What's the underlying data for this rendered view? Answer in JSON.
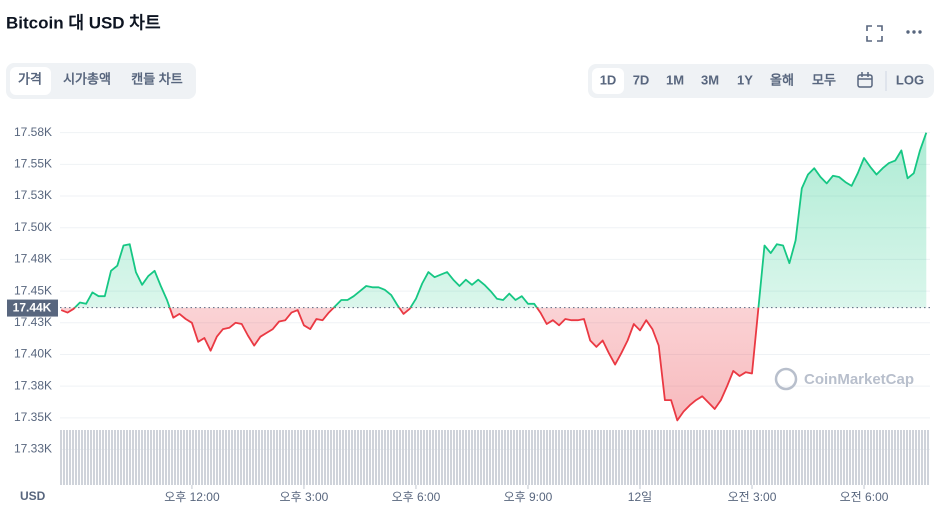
{
  "header": {
    "title": "Bitcoin 대 USD 차트",
    "tabs": [
      "가격",
      "시가총액",
      "캔들 차트"
    ],
    "ranges": [
      "1D",
      "7D",
      "1M",
      "3M",
      "1Y",
      "올해",
      "모두"
    ],
    "log": "LOG"
  },
  "watermark": "CoinMarketCap",
  "chart_data": {
    "type": "line",
    "y_unit": "USD",
    "x": [
      510,
      520,
      530,
      540,
      550,
      560,
      570,
      580,
      590,
      600,
      610,
      620,
      630,
      640,
      650,
      660,
      670,
      680,
      690,
      700,
      710,
      720,
      730,
      740,
      750,
      760,
      770,
      780,
      790,
      800,
      810,
      820,
      830,
      840,
      850,
      860,
      870,
      880,
      890,
      900,
      910,
      920,
      930,
      940,
      950,
      960,
      970,
      980,
      990,
      1000,
      1010,
      1020,
      1030,
      1040,
      1050,
      1060,
      1070,
      1080,
      1090,
      1100,
      1110,
      1120,
      1130,
      1140,
      1150,
      1160,
      1170,
      1180,
      1190,
      1200,
      1210,
      1220,
      1230,
      1240,
      1250,
      1260,
      1270,
      1280,
      1290,
      1300,
      1310,
      1320,
      1330,
      1340,
      1350,
      1360,
      1370,
      1380,
      1390,
      1400,
      1410,
      1420,
      1430,
      1440,
      1450,
      1460,
      1470,
      1480,
      1490,
      1500,
      1510,
      1520,
      1530,
      1540,
      1550,
      1560,
      1570,
      1580,
      1590,
      1600,
      1610,
      1620,
      1630,
      1640,
      1650,
      1660,
      1670,
      1680,
      1690,
      1700,
      1710,
      1720,
      1730,
      1740,
      1750,
      1760,
      1770,
      1780,
      1790,
      1800,
      1810,
      1820,
      1830,
      1840,
      1850,
      1860,
      1870,
      1880,
      1890,
      1900
    ],
    "values": [
      17435,
      17433,
      17436,
      17441,
      17440,
      17449,
      17446,
      17446,
      17466,
      17470,
      17486,
      17487,
      17465,
      17455,
      17462,
      17466,
      17454,
      17443,
      17429,
      17432,
      17428,
      17425,
      17410,
      17413,
      17403,
      17414,
      17420,
      17421,
      17425,
      17424,
      17415,
      17407,
      17414,
      17417,
      17420,
      17426,
      17427,
      17433,
      17435,
      17423,
      17420,
      17428,
      17427,
      17433,
      17438,
      17443,
      17443,
      17446,
      17450,
      17454,
      17453,
      17453,
      17451,
      17447,
      17439,
      17432,
      17436,
      17444,
      17456,
      17465,
      17461,
      17463,
      17465,
      17459,
      17454,
      17459,
      17455,
      17459,
      17455,
      17450,
      17444,
      17443,
      17448,
      17443,
      17446,
      17440,
      17440,
      17433,
      17424,
      17427,
      17423,
      17428,
      17427,
      17427,
      17428,
      17411,
      17406,
      17411,
      17401,
      17392,
      17401,
      17411,
      17424,
      17419,
      17427,
      17420,
      17407,
      17364,
      17364,
      17348,
      17355,
      17360,
      17364,
      17367,
      17362,
      17357,
      17364,
      17375,
      17387,
      17383,
      17386,
      17385,
      17435,
      17486,
      17480,
      17487,
      17486,
      17472,
      17490,
      17531,
      17542,
      17547,
      17540,
      17535,
      17541,
      17540,
      17536,
      17533,
      17543,
      17555,
      17548,
      17542,
      17547,
      17551,
      17553,
      17561,
      17539,
      17543,
      17561,
      17575
    ],
    "baseline": {
      "value": 17437,
      "label": "17.44K"
    },
    "color_up": "#16c784",
    "color_down": "#ea3943",
    "xlim": [
      508,
      1906
    ],
    "xticks": [
      {
        "value": 720,
        "label": "오후 12:00"
      },
      {
        "value": 900,
        "label": "오후 3:00"
      },
      {
        "value": 1080,
        "label": "오후 6:00"
      },
      {
        "value": 1260,
        "label": "오후 9:00"
      },
      {
        "value": 1440,
        "label": "12일"
      },
      {
        "value": 1620,
        "label": "오전 3:00"
      },
      {
        "value": 1800,
        "label": "오전 6:00"
      }
    ],
    "ylim": [
      17297,
      17585
    ],
    "yticks": [
      {
        "value": 17575,
        "label": "17.58K"
      },
      {
        "value": 17550,
        "label": "17.55K"
      },
      {
        "value": 17525,
        "label": "17.53K"
      },
      {
        "value": 17500,
        "label": "17.50K"
      },
      {
        "value": 17475,
        "label": "17.48K"
      },
      {
        "value": 17450,
        "label": "17.45K"
      },
      {
        "value": 17425,
        "label": "17.43K"
      },
      {
        "value": 17400,
        "label": "17.40K"
      },
      {
        "value": 17375,
        "label": "17.38K"
      },
      {
        "value": 17350,
        "label": "17.35K"
      },
      {
        "value": 17325,
        "label": "17.33K"
      }
    ],
    "grid": true
  }
}
